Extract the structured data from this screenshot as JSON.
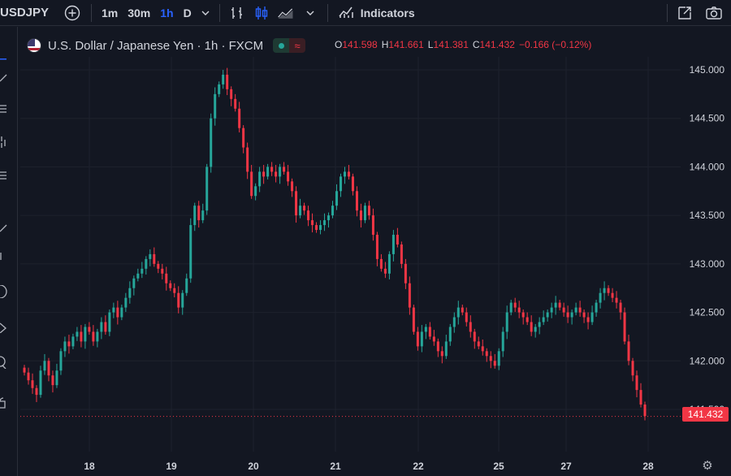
{
  "toolbar": {
    "symbol": "USDJPY",
    "add_symbol_icon": "plus-circle-icon",
    "intervals": [
      "1m",
      "30m",
      "1h",
      "D"
    ],
    "active_interval": "1h",
    "indicators_label": "Indicators"
  },
  "legend": {
    "title": "U.S. Dollar / Japanese Yen · 1h · FXCM",
    "open_key": "O",
    "open": "141.598",
    "high_key": "H",
    "high": "141.661",
    "low_key": "L",
    "low": "141.381",
    "close_key": "C",
    "close": "141.432",
    "change": "−0.166 (−0.12%)"
  },
  "last_price": "141.432",
  "colors": {
    "background": "#131722",
    "up": "#26a69a",
    "down": "#f23645",
    "grid": "#1e222d",
    "text": "#d1d4dc"
  },
  "chart_data": {
    "type": "candlestick",
    "symbol": "USDJPY",
    "interval": "1h",
    "ylim": [
      141.38,
      145.05
    ],
    "y_ticks": [
      "145.000",
      "144.500",
      "144.000",
      "143.500",
      "143.000",
      "142.500",
      "142.000",
      "141.500"
    ],
    "x_ticks": [
      "18",
      "19",
      "20",
      "21",
      "22",
      "25",
      "27",
      "28"
    ],
    "last_price": 141.432,
    "close_series": [
      141.88,
      141.8,
      141.72,
      141.65,
      141.9,
      142.0,
      141.85,
      141.75,
      141.9,
      142.1,
      142.2,
      142.15,
      142.25,
      142.3,
      142.2,
      142.35,
      142.3,
      142.2,
      142.3,
      142.4,
      142.3,
      142.5,
      142.55,
      142.45,
      142.55,
      142.65,
      142.75,
      142.85,
      142.9,
      142.95,
      143.05,
      143.1,
      143.0,
      142.95,
      142.9,
      142.8,
      142.75,
      142.7,
      142.55,
      142.7,
      142.85,
      143.4,
      143.6,
      143.45,
      143.55,
      144.0,
      144.5,
      144.75,
      144.85,
      144.95,
      144.8,
      144.7,
      144.6,
      144.4,
      144.2,
      143.95,
      143.7,
      143.8,
      143.95,
      143.9,
      144.0,
      143.95,
      143.9,
      144.0,
      143.95,
      143.85,
      143.75,
      143.5,
      143.6,
      143.55,
      143.45,
      143.4,
      143.35,
      143.4,
      143.45,
      143.5,
      143.6,
      143.75,
      143.9,
      143.95,
      143.9,
      143.75,
      143.55,
      143.45,
      143.6,
      143.5,
      143.3,
      143.05,
      142.95,
      142.9,
      143.1,
      143.3,
      143.2,
      143.0,
      142.8,
      142.55,
      142.3,
      142.15,
      142.3,
      142.35,
      142.25,
      142.2,
      142.1,
      142.05,
      142.2,
      142.35,
      142.45,
      142.55,
      142.5,
      142.4,
      142.3,
      142.2,
      142.15,
      142.1,
      142.05,
      142.0,
      141.95,
      142.1,
      142.3,
      142.5,
      142.6,
      142.55,
      142.5,
      142.45,
      142.4,
      142.3,
      142.35,
      142.4,
      142.45,
      142.5,
      142.55,
      142.6,
      142.55,
      142.5,
      142.45,
      142.5,
      142.55,
      142.5,
      142.45,
      142.4,
      142.5,
      142.6,
      142.7,
      142.75,
      142.7,
      142.65,
      142.6,
      142.5,
      142.2,
      142.0,
      141.85,
      141.7,
      141.55,
      141.432
    ]
  }
}
